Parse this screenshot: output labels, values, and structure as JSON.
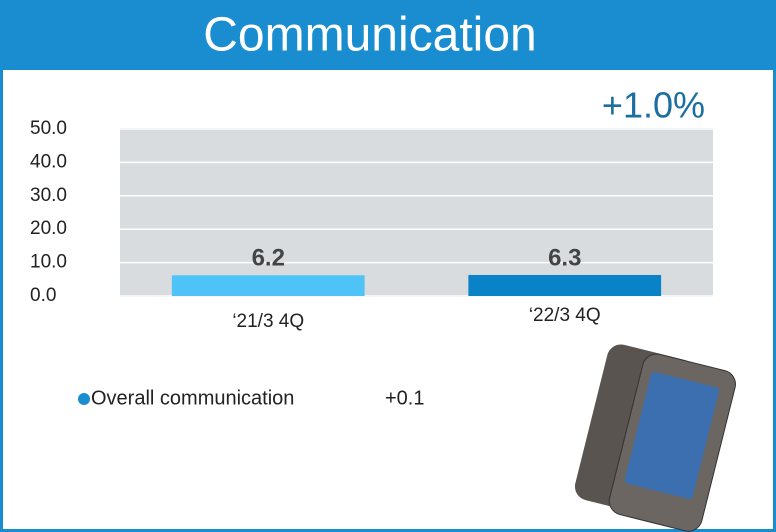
{
  "chart_data": {
    "type": "bar",
    "title": "Communication",
    "annotation": "+1.0%",
    "categories": [
      "‘21/3 4Q",
      "‘22/3 4Q"
    ],
    "values": [
      6.2,
      6.3
    ],
    "colors": [
      "#4dc3f7",
      "#0a82c8"
    ],
    "ylim": [
      0,
      50
    ],
    "yticks": [
      {
        "value": 0,
        "label": "0.0"
      },
      {
        "value": 10,
        "label": "10.0"
      },
      {
        "value": 20,
        "label": "20.0"
      },
      {
        "value": 30,
        "label": "30.0"
      },
      {
        "value": 40,
        "label": "40.0"
      },
      {
        "value": 50,
        "label": "50.0"
      }
    ],
    "grid": true,
    "note": {
      "text": "Overall communication",
      "value": "+0.1"
    }
  }
}
